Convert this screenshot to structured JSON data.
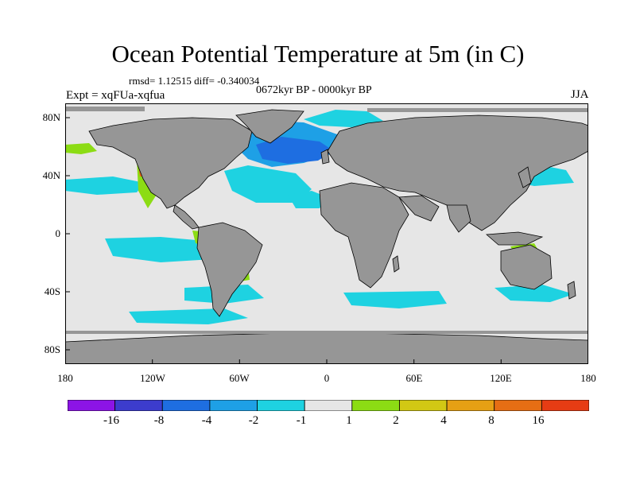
{
  "title": "Ocean Potential Temperature at 5m (in C)",
  "stats": "rmsd= 1.12515 diff= -0.340034",
  "period": "0672kyr BP - 0000kyr BP",
  "experiment": "Expt = xqFUa-xqfua",
  "season": "JJA",
  "map": {
    "projection": "cylindrical-equidistant",
    "lon_range": [
      -180,
      180
    ],
    "lat_range": [
      -90,
      90
    ],
    "land_color": "#969696",
    "ocean_background_color": "#e6e6e6",
    "lat_ticks": [
      {
        "value": 80,
        "label": "80N"
      },
      {
        "value": 40,
        "label": "40N"
      },
      {
        "value": 0,
        "label": "0"
      },
      {
        "value": -40,
        "label": "40S"
      },
      {
        "value": -80,
        "label": "80S"
      }
    ],
    "lon_ticks": [
      {
        "value": -180,
        "label": "180"
      },
      {
        "value": -120,
        "label": "120W"
      },
      {
        "value": -60,
        "label": "60W"
      },
      {
        "value": 0,
        "label": "0"
      },
      {
        "value": 60,
        "label": "60E"
      },
      {
        "value": 120,
        "label": "120E"
      },
      {
        "value": 180,
        "label": "180"
      }
    ]
  },
  "colorbar": {
    "colors": [
      "#8c14e6",
      "#3c3ccd",
      "#1e6ee1",
      "#1ea0e6",
      "#1ed2e1",
      "#e6e6e6",
      "#8cdc14",
      "#d2c814",
      "#e6a014",
      "#e66e14",
      "#e63c14"
    ],
    "labels": [
      "-16",
      "-8",
      "-4",
      "-2",
      "-1",
      "1",
      "2",
      "4",
      "8",
      "16"
    ]
  }
}
